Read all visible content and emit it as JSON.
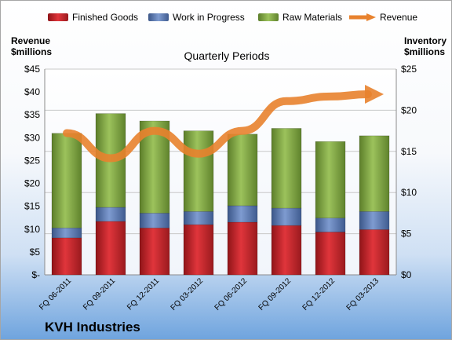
{
  "legend": {
    "finished_goods": "Finished Goods",
    "work_in_progress": "Work in Progress",
    "raw_materials": "Raw Materials",
    "revenue": "Revenue"
  },
  "company": "KVH Industries",
  "chart_data": {
    "type": "bar",
    "subtype": "stacked-bar-with-line",
    "title": "Quarterly Periods",
    "left_axis_title": [
      "Revenue",
      "$millions"
    ],
    "right_axis_title": [
      "Inventory",
      "$millions"
    ],
    "categories": [
      "FQ 06-2011",
      "FQ 09-2011",
      "FQ 12-2011",
      "FQ 03-2012",
      "FQ 06-2012",
      "FQ 09-2012",
      "FQ 12-2012",
      "FQ 03-2013"
    ],
    "left_axis": {
      "min": 0,
      "max": 45,
      "step": 5,
      "tick_labels": [
        "$-",
        "$5",
        "$10",
        "$15",
        "$20",
        "$25",
        "$30",
        "$35",
        "$40",
        "$45"
      ]
    },
    "right_axis": {
      "min": 0,
      "max": 25,
      "step": 5,
      "tick_labels": [
        "$0",
        "$5",
        "$10",
        "$15",
        "$20",
        "$25"
      ]
    },
    "grid": true,
    "legend_position": "top",
    "series": [
      {
        "name": "Finished Goods",
        "axis": "right",
        "color": "#c0272d",
        "values": [
          4.5,
          6.5,
          5.7,
          6.1,
          6.4,
          6.0,
          5.2,
          5.5
        ]
      },
      {
        "name": "Work in Progress",
        "axis": "right",
        "color": "#4f6fa8",
        "values": [
          1.2,
          1.7,
          1.8,
          1.6,
          2.0,
          2.1,
          1.7,
          2.2
        ]
      },
      {
        "name": "Raw Materials",
        "axis": "right",
        "color": "#7ba23f",
        "values": [
          11.5,
          11.4,
          11.2,
          9.8,
          8.7,
          9.7,
          9.3,
          9.2
        ]
      },
      {
        "name": "Revenue",
        "axis": "left",
        "type": "line",
        "color": "#e8822e",
        "values": [
          31.0,
          25.5,
          31.5,
          26.5,
          31.5,
          38.0,
          39.0,
          39.5
        ]
      }
    ]
  }
}
